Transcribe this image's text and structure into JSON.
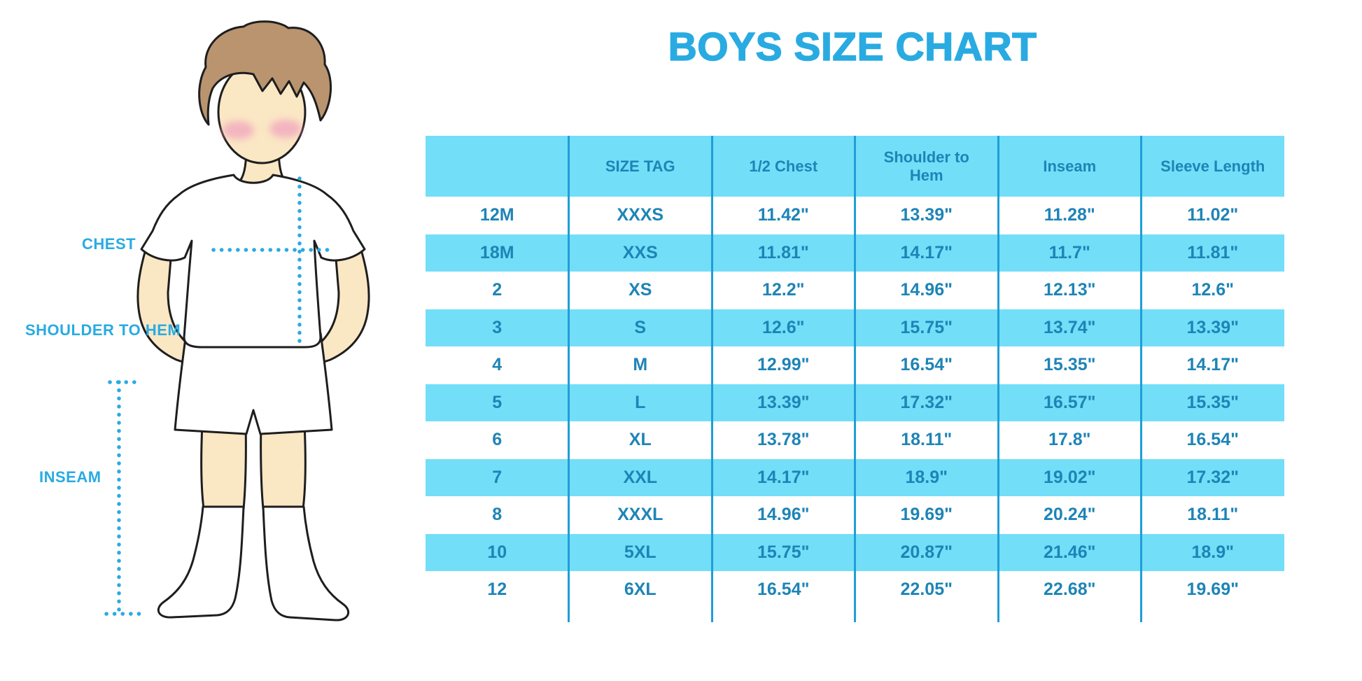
{
  "title": "BOYS SIZE CHART",
  "colors": {
    "accent": "#29abe2",
    "table_text": "#1e84b6",
    "stripe": "#73def8",
    "separator": "#1f9ed8",
    "skin": "#fae7c4",
    "hair": "#b9946f",
    "blush": "#f2a8be",
    "outline": "#1e1e1e"
  },
  "figure": {
    "labels": {
      "chest": "CHEST",
      "shoulder_to_hem": "SHOULDER TO HEM",
      "inseam": "INSEAM"
    }
  },
  "chart_data": {
    "type": "table",
    "title": "BOYS SIZE CHART",
    "units": "inches",
    "columns": [
      "",
      "SIZE TAG",
      "1/2 Chest",
      "Shoulder to Hem",
      "Inseam",
      "Sleeve Length"
    ],
    "rows": [
      [
        "12M",
        "XXXS",
        "11.42\"",
        "13.39\"",
        "11.28\"",
        "11.02\""
      ],
      [
        "18M",
        "XXS",
        "11.81\"",
        "14.17\"",
        "11.7\"",
        "11.81\""
      ],
      [
        "2",
        "XS",
        "12.2\"",
        "14.96\"",
        "12.13\"",
        "12.6\""
      ],
      [
        "3",
        "S",
        "12.6\"",
        "15.75\"",
        "13.74\"",
        "13.39\""
      ],
      [
        "4",
        "M",
        "12.99\"",
        "16.54\"",
        "15.35\"",
        "14.17\""
      ],
      [
        "5",
        "L",
        "13.39\"",
        "17.32\"",
        "16.57\"",
        "15.35\""
      ],
      [
        "6",
        "XL",
        "13.78\"",
        "18.11\"",
        "17.8\"",
        "16.54\""
      ],
      [
        "7",
        "XXL",
        "14.17\"",
        "18.9\"",
        "19.02\"",
        "17.32\""
      ],
      [
        "8",
        "XXXL",
        "14.96\"",
        "19.69\"",
        "20.24\"",
        "18.11\""
      ],
      [
        "10",
        "5XL",
        "15.75\"",
        "20.87\"",
        "21.46\"",
        "18.9\""
      ],
      [
        "12",
        "6XL",
        "16.54\"",
        "22.05\"",
        "22.68\"",
        "19.69\""
      ]
    ]
  }
}
